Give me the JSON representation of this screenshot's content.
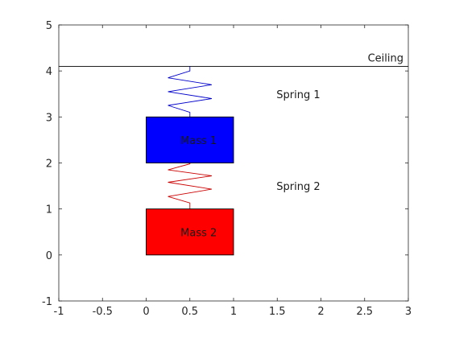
{
  "chart_data": {
    "type": "diagram",
    "xlim": [
      -1,
      3
    ],
    "ylim": [
      -1,
      5
    ],
    "xticks": [
      {
        "value": -1,
        "label": "-1"
      },
      {
        "value": -0.5,
        "label": "-0.5"
      },
      {
        "value": 0,
        "label": "0"
      },
      {
        "value": 0.5,
        "label": "0.5"
      },
      {
        "value": 1,
        "label": "1"
      },
      {
        "value": 1.5,
        "label": "1.5"
      },
      {
        "value": 2,
        "label": "2"
      },
      {
        "value": 2.5,
        "label": "2.5"
      },
      {
        "value": 3,
        "label": "3"
      }
    ],
    "yticks": [
      {
        "value": -1,
        "label": "-1"
      },
      {
        "value": 0,
        "label": "0"
      },
      {
        "value": 1,
        "label": "1"
      },
      {
        "value": 2,
        "label": "2"
      },
      {
        "value": 3,
        "label": "3"
      },
      {
        "value": 4,
        "label": "4"
      },
      {
        "value": 5,
        "label": "5"
      }
    ],
    "grid": false,
    "ceiling": {
      "y": 4.1,
      "x_range": [
        -1,
        3
      ],
      "label": "Ceiling",
      "color": "#000000"
    },
    "masses": [
      {
        "label": "Mass 1",
        "x": [
          0,
          1
        ],
        "y": [
          2,
          3
        ],
        "color": "#0000ff"
      },
      {
        "label": "Mass 2",
        "x": [
          0,
          1
        ],
        "y": [
          0,
          1
        ],
        "color": "#ff0000"
      }
    ],
    "springs": [
      {
        "label": "Spring 1",
        "color": "#0000cc",
        "points": [
          [
            0.5,
            4.1
          ],
          [
            0.5,
            4.0
          ],
          [
            0.25,
            3.85
          ],
          [
            0.75,
            3.7
          ],
          [
            0.25,
            3.55
          ],
          [
            0.75,
            3.4
          ],
          [
            0.25,
            3.25
          ],
          [
            0.5,
            3.1
          ],
          [
            0.5,
            3.0
          ]
        ]
      },
      {
        "label": "Spring 2",
        "color": "#cc0000",
        "points": [
          [
            0.5,
            2.0
          ],
          [
            0.5,
            1.98
          ],
          [
            0.25,
            1.85
          ],
          [
            0.75,
            1.72
          ],
          [
            0.25,
            1.58
          ],
          [
            0.75,
            1.43
          ],
          [
            0.25,
            1.27
          ],
          [
            0.5,
            1.13
          ],
          [
            0.5,
            1.0
          ]
        ]
      }
    ],
    "annotations": [
      {
        "text": "Spring 1",
        "x": 1.5,
        "y": 3.5
      },
      {
        "text": "Spring 2",
        "x": 1.5,
        "y": 1.5
      }
    ]
  }
}
